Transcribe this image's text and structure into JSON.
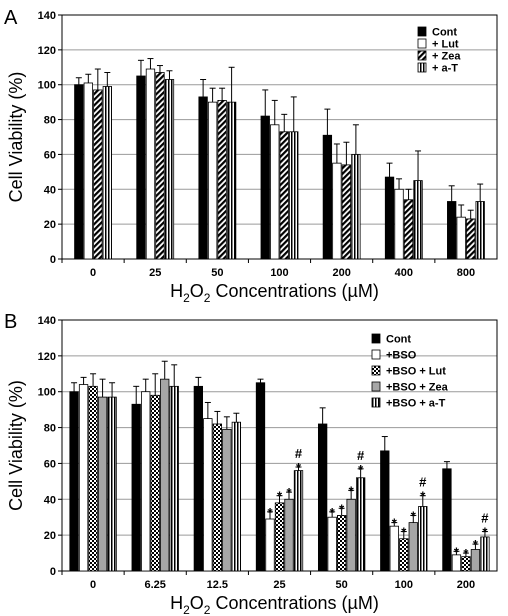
{
  "chart_data": [
    {
      "panel_label": "A",
      "type": "bar",
      "ylabel": "Cell Viability (%)",
      "xlabel": "H2O2 Concentrations (µM)",
      "ylim": [
        0,
        140
      ],
      "yticks": [
        0,
        20,
        40,
        60,
        80,
        100,
        120,
        140
      ],
      "categories": [
        "0",
        "25",
        "50",
        "100",
        "200",
        "400",
        "800"
      ],
      "grid": true,
      "legend_position": "top-right",
      "series": [
        {
          "name": "Cont",
          "pattern": "solid",
          "values": [
            100,
            105,
            93,
            82,
            71,
            47,
            33
          ],
          "errors": [
            4,
            9,
            10,
            15,
            15,
            8,
            9
          ]
        },
        {
          "name": "+ Lut",
          "pattern": "white",
          "values": [
            101,
            109,
            90,
            77,
            55,
            40,
            24
          ],
          "errors": [
            5,
            6,
            8,
            14,
            11,
            6,
            7
          ]
        },
        {
          "name": "+ Zea",
          "pattern": "diagonal",
          "values": [
            97,
            107,
            91,
            73,
            54,
            34,
            23
          ],
          "errors": [
            12,
            4,
            7,
            10,
            13,
            6,
            5
          ]
        },
        {
          "name": "+ a-T",
          "pattern": "vertical",
          "values": [
            99,
            103,
            90,
            73,
            60,
            45,
            33
          ],
          "errors": [
            8,
            5,
            20,
            20,
            17,
            17,
            10
          ]
        }
      ],
      "significance": []
    },
    {
      "panel_label": "B",
      "type": "bar",
      "ylabel": "Cell Viability (%)",
      "xlabel": "H2O2 Concentrations (µM)",
      "ylim": [
        0,
        140
      ],
      "yticks": [
        0,
        20,
        40,
        60,
        80,
        100,
        120,
        140
      ],
      "categories": [
        "0",
        "6.25",
        "12.5",
        "25",
        "50",
        "100",
        "200"
      ],
      "grid": true,
      "legend_position": "top-right",
      "series": [
        {
          "name": "Cont",
          "pattern": "solid",
          "values": [
            100,
            93,
            103,
            105,
            82,
            67,
            57
          ],
          "errors": [
            5,
            10,
            5,
            2,
            9,
            8,
            4
          ]
        },
        {
          "name": "+BSO",
          "pattern": "white",
          "values": [
            104,
            100,
            85,
            29,
            30,
            25,
            9
          ],
          "errors": [
            4,
            7,
            9,
            4,
            3,
            2,
            2
          ]
        },
        {
          "name": "+BSO + Lut",
          "pattern": "check",
          "values": [
            103,
            98,
            82,
            38,
            31,
            18,
            8
          ],
          "errors": [
            7,
            12,
            7,
            4,
            4,
            4,
            2
          ]
        },
        {
          "name": "+BSO + Zea",
          "pattern": "gray",
          "values": [
            97,
            107,
            79,
            40,
            40,
            27,
            12
          ],
          "errors": [
            10,
            10,
            7,
            4,
            5,
            4,
            3
          ]
        },
        {
          "name": "+BSO + a-T",
          "pattern": "vertical",
          "values": [
            97,
            103,
            83,
            56,
            52,
            36,
            19
          ],
          "errors": [
            8,
            12,
            5,
            2,
            5,
            6,
            3
          ]
        }
      ],
      "significance": [
        {
          "category": 3,
          "series": [
            1,
            2,
            3,
            4
          ],
          "star": true,
          "hash": [
            false,
            false,
            false,
            true
          ]
        },
        {
          "category": 4,
          "series": [
            1,
            2,
            3,
            4
          ],
          "star": true,
          "hash": [
            false,
            false,
            false,
            true
          ]
        },
        {
          "category": 5,
          "series": [
            1,
            2,
            3,
            4
          ],
          "star": true,
          "hash": [
            false,
            false,
            false,
            true
          ]
        },
        {
          "category": 6,
          "series": [
            1,
            2,
            3,
            4
          ],
          "star": true,
          "hash": [
            false,
            false,
            false,
            true
          ]
        }
      ]
    }
  ],
  "markers": {
    "star": "*",
    "hash": "#"
  },
  "xlabel_parts": {
    "main": "H",
    "sub1": "2",
    "mid": "O",
    "sub2": "2",
    "rest": " Concentrations (µM)"
  }
}
